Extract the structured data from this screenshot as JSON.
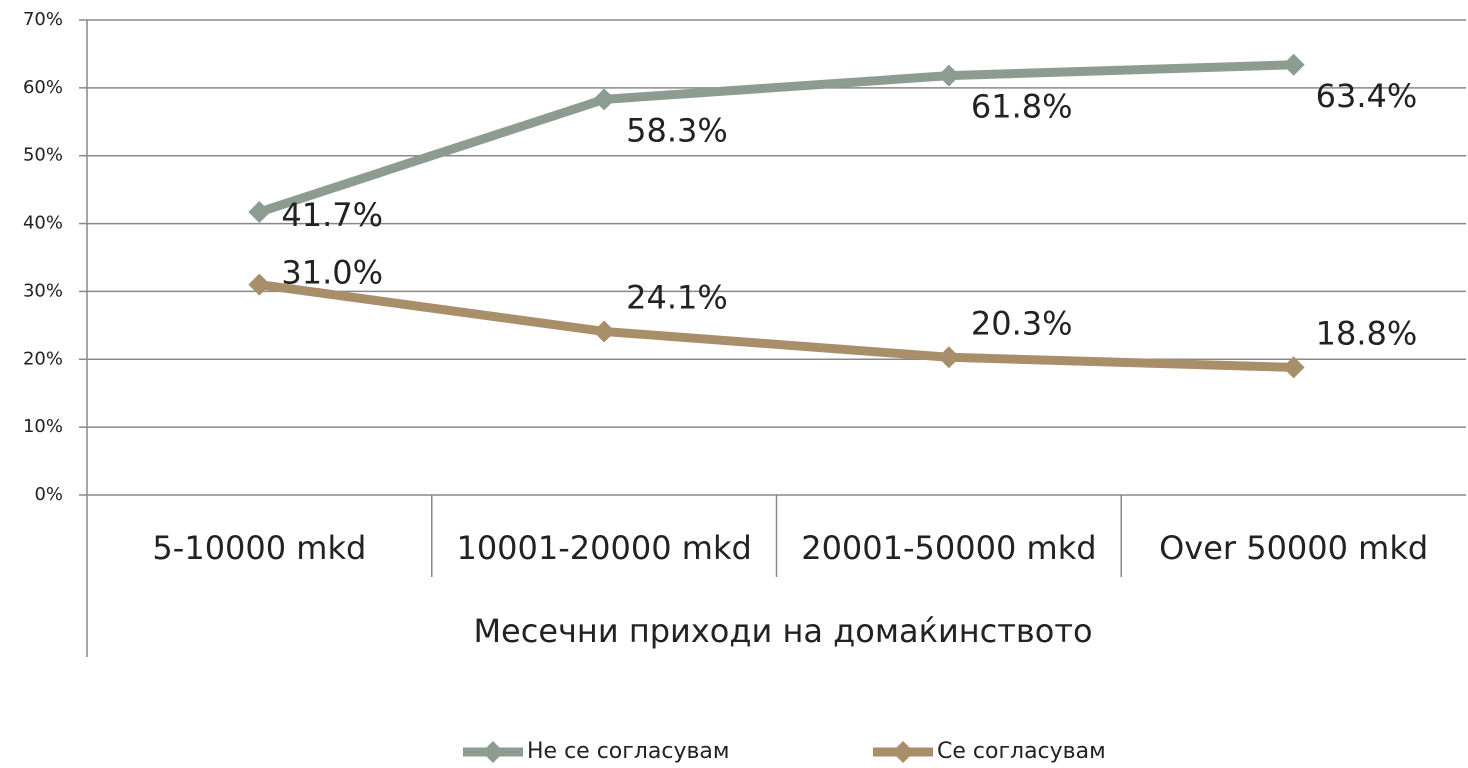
{
  "chart_data": {
    "type": "line",
    "x_label": "Месечни приходи на домаќинството",
    "categories": [
      "5-10000 mkd",
      "10001-20000 mkd",
      "20001-50000 mkd",
      "Over 50000 mkd"
    ],
    "series": [
      {
        "name": "Не се согласувам",
        "color": "#8c9c90",
        "values": [
          41.7,
          58.3,
          61.8,
          63.4
        ],
        "value_labels": [
          "41.7%",
          "58.3%",
          "61.8%",
          "63.4%"
        ]
      },
      {
        "name": "Се согласувам",
        "color": "#a98e6a",
        "values": [
          31.0,
          24.1,
          20.3,
          18.8
        ],
        "value_labels": [
          "31.0%",
          "24.1%",
          "20.3%",
          "18.8%"
        ]
      }
    ],
    "ylim": [
      0,
      70
    ],
    "yticks": [
      {
        "value": 0,
        "label": "0%"
      },
      {
        "value": 10,
        "label": "10%"
      },
      {
        "value": 20,
        "label": "20%"
      },
      {
        "value": 30,
        "label": "30%"
      },
      {
        "value": 40,
        "label": "40%"
      },
      {
        "value": 50,
        "label": "50%"
      },
      {
        "value": 60,
        "label": "60%"
      },
      {
        "value": 70,
        "label": "70%"
      }
    ],
    "grid": true,
    "legend": "bottom"
  }
}
